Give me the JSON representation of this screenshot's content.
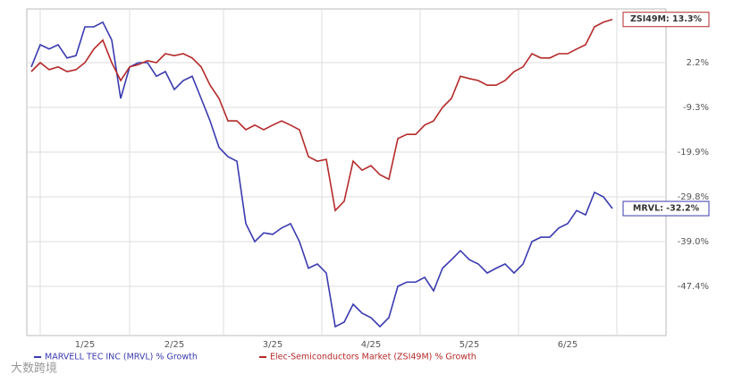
{
  "chart_data": {
    "type": "line",
    "categories": [
      null,
      null,
      null,
      null,
      null,
      null,
      "1/25",
      null,
      null,
      null,
      null,
      null,
      null,
      null,
      null,
      null,
      "2/25",
      null,
      null,
      null,
      null,
      null,
      null,
      null,
      null,
      null,
      null,
      "3/25",
      null,
      null,
      null,
      null,
      null,
      null,
      null,
      null,
      null,
      null,
      "4/25",
      null,
      null,
      null,
      null,
      null,
      null,
      null,
      null,
      null,
      null,
      "5/25",
      null,
      null,
      null,
      null,
      null,
      null,
      null,
      null,
      null,
      null,
      "6/25",
      null,
      null,
      null,
      null,
      null
    ],
    "series": [
      {
        "name": "MARVELL TEC INC (MRVL) % Growth",
        "color": "#3a3ab0",
        "end_label": "MRVL: -32.2%",
        "values": [
          1.1,
          6.8,
          5.7,
          6.8,
          3.4,
          4.0,
          11.4,
          11.4,
          12.6,
          8.0,
          -7.0,
          1.1,
          2.2,
          2.2,
          -1.3,
          -0.1,
          -4.7,
          -2.4,
          -1.3,
          -7.0,
          -12.5,
          -18.8,
          -20.9,
          -21.9,
          -35.3,
          -39.0,
          -37.2,
          -37.5,
          -36.2,
          -35.3,
          -39.0,
          -44.0,
          -43.2,
          -44.9,
          -54.6,
          -53.8,
          -50.6,
          -52.2,
          -53.0,
          -54.6,
          -53.0,
          -47.4,
          -46.6,
          -46.6,
          -45.7,
          -48.2,
          -44.0,
          -42.4,
          -40.7,
          -42.4,
          -43.2,
          -44.9,
          -44.0,
          -43.2,
          -44.9,
          -43.2,
          -39.0,
          -38.1,
          -38.1,
          -36.2,
          -35.3,
          -32.6,
          -33.5,
          -28.8,
          -29.8,
          -32.2
        ]
      },
      {
        "name": "Elec-Semiconductors Market (ZSI49M) % Growth",
        "color": "#b52a2a",
        "end_label": "ZSI49M: 13.3%",
        "values": [
          -0.1,
          2.2,
          0.4,
          1.1,
          -0.1,
          0.4,
          2.2,
          5.7,
          8.0,
          2.2,
          -2.4,
          1.1,
          1.7,
          2.7,
          2.2,
          4.5,
          4.0,
          4.5,
          3.4,
          1.1,
          -3.6,
          -7.0,
          -12.5,
          -12.5,
          -14.6,
          -13.5,
          -14.6,
          -13.5,
          -12.5,
          -13.5,
          -14.6,
          -20.9,
          -21.9,
          -21.5,
          -32.6,
          -30.7,
          -21.9,
          -23.9,
          -22.9,
          -24.9,
          -25.9,
          -16.7,
          -15.7,
          -15.7,
          -13.5,
          -12.5,
          -9.3,
          -7.0,
          -1.3,
          -1.9,
          -2.4,
          -3.6,
          -3.6,
          -2.4,
          -0.1,
          1.1,
          4.5,
          3.4,
          3.4,
          4.5,
          4.5,
          5.7,
          6.8,
          11.4,
          12.6,
          13.3
        ]
      }
    ],
    "ylim": [
      -56.2,
      16.0
    ],
    "yticks": [
      {
        "value": 2.2,
        "label": "2.2%"
      },
      {
        "value": -9.3,
        "label": "-9.3%"
      },
      {
        "value": -19.9,
        "label": "-19.9%"
      },
      {
        "value": -29.8,
        "label": "-29.8%"
      },
      {
        "value": -39.0,
        "label": "-39.0%"
      },
      {
        "value": -47.4,
        "label": "-47.4%"
      }
    ],
    "grid": true,
    "legend": "bottom",
    "watermark": "大数跨境"
  }
}
